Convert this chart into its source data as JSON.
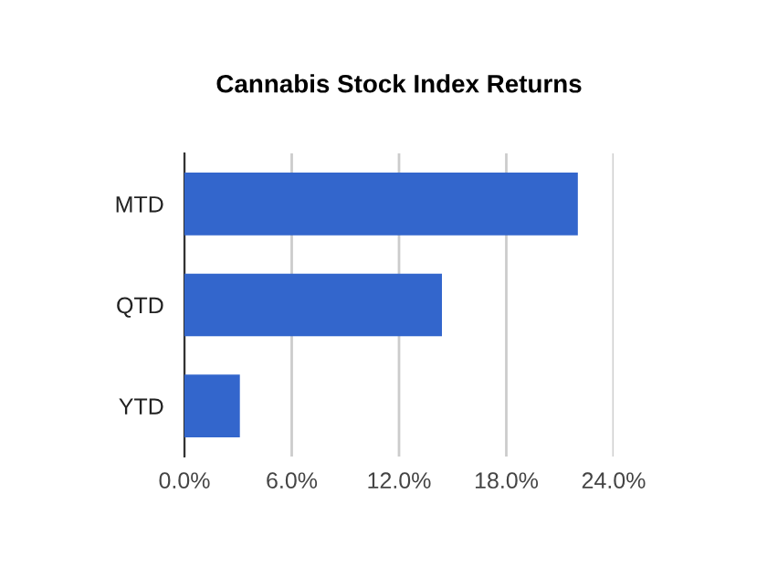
{
  "chart_data": {
    "type": "bar",
    "orientation": "horizontal",
    "title": "Cannabis Stock Index Returns",
    "categories": [
      "MTD",
      "QTD",
      "YTD"
    ],
    "values": [
      22.0,
      14.4,
      3.1
    ],
    "color": "#3366cc",
    "xlim": [
      0,
      24
    ],
    "xticks": [
      {
        "value": 0,
        "label": "0.0%"
      },
      {
        "value": 6,
        "label": "6.0%"
      },
      {
        "value": 12,
        "label": "12.0%"
      },
      {
        "value": 18,
        "label": "18.0%"
      },
      {
        "value": 24,
        "label": "24.0%"
      }
    ],
    "grid": "x",
    "legend": false
  }
}
